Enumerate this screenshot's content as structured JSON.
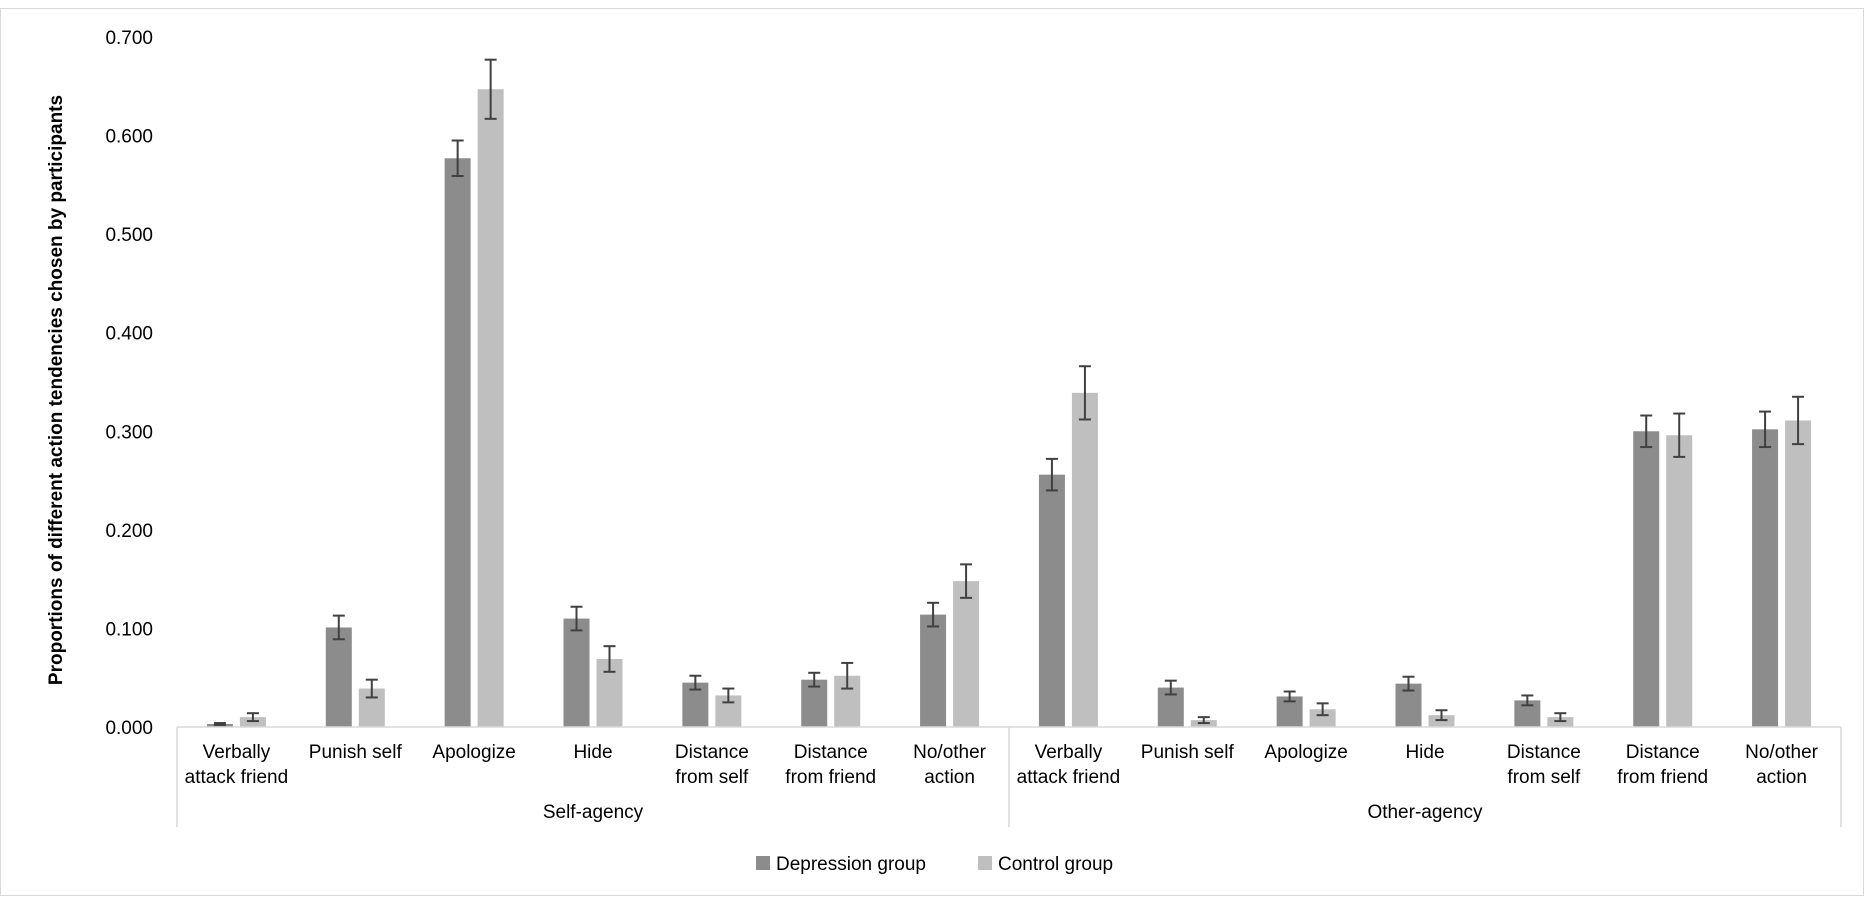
{
  "chart_data": {
    "type": "bar",
    "title": "",
    "xlabel": "",
    "ylabel": "Proportions of different action tendencies chosen by participants",
    "ylim": [
      0,
      0.7
    ],
    "yticks": [
      "0.000",
      "0.100",
      "0.200",
      "0.300",
      "0.400",
      "0.500",
      "0.600",
      "0.700"
    ],
    "grid": false,
    "legend_position": "bottom",
    "group_labels": [
      "Self-agency",
      "Other-agency"
    ],
    "categories": [
      [
        "Verbally",
        "attack friend"
      ],
      [
        "Punish self"
      ],
      [
        "Apologize"
      ],
      [
        "Hide"
      ],
      [
        "Distance",
        "from self"
      ],
      [
        "Distance",
        "from friend"
      ],
      [
        "No/other",
        "action"
      ],
      [
        "Verbally",
        "attack friend"
      ],
      [
        "Punish self"
      ],
      [
        "Apologize"
      ],
      [
        "Hide"
      ],
      [
        "Distance",
        "from self"
      ],
      [
        "Distance",
        "from friend"
      ],
      [
        "No/other",
        "action"
      ]
    ],
    "series": [
      {
        "name": "Depression group",
        "color": "#8c8c8c",
        "values": [
          0.003,
          0.101,
          0.577,
          0.11,
          0.045,
          0.048,
          0.114,
          0.256,
          0.04,
          0.031,
          0.044,
          0.027,
          0.3,
          0.302
        ],
        "errors": [
          0.001,
          0.012,
          0.018,
          0.012,
          0.007,
          0.007,
          0.012,
          0.016,
          0.007,
          0.005,
          0.007,
          0.005,
          0.016,
          0.018
        ]
      },
      {
        "name": "Control group",
        "color": "#bfbfbf",
        "values": [
          0.01,
          0.039,
          0.647,
          0.069,
          0.032,
          0.052,
          0.148,
          0.339,
          0.007,
          0.018,
          0.012,
          0.01,
          0.296,
          0.311
        ],
        "errors": [
          0.004,
          0.009,
          0.03,
          0.013,
          0.007,
          0.013,
          0.017,
          0.027,
          0.003,
          0.006,
          0.005,
          0.004,
          0.022,
          0.024
        ]
      }
    ]
  }
}
